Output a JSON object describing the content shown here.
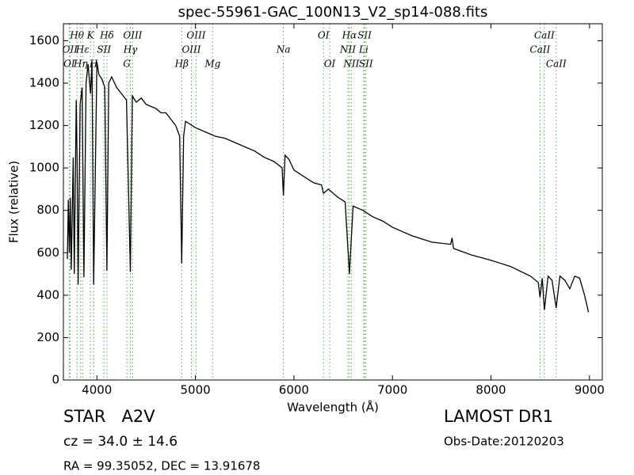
{
  "chart_data": {
    "type": "line",
    "title": "spec-55961-GAC_100N13_V2_sp14-088.fits",
    "xlabel": "Wavelength (Å)",
    "ylabel": "Flux (relative)",
    "xlim": [
      3660,
      9130
    ],
    "ylim": [
      0,
      1680
    ],
    "xticks": [
      4000,
      5000,
      6000,
      7000,
      8000,
      9000
    ],
    "yticks": [
      0,
      200,
      400,
      600,
      800,
      1000,
      1200,
      1400,
      1600
    ],
    "color": "#000000",
    "line_color": "#4caf50",
    "x": [
      3700,
      3710,
      3720,
      3730,
      3740,
      3760,
      3770,
      3790,
      3800,
      3810,
      3830,
      3850,
      3868,
      3890,
      3910,
      3935,
      3950,
      3967,
      4000,
      4020,
      4050,
      4080,
      4102,
      4120,
      4150,
      4200,
      4250,
      4300,
      4340,
      4360,
      4400,
      4450,
      4500,
      4550,
      4600,
      4650,
      4700,
      4750,
      4800,
      4840,
      4861,
      4880,
      4900,
      5000,
      5100,
      5200,
      5300,
      5400,
      5500,
      5600,
      5700,
      5800,
      5880,
      5893,
      5910,
      5950,
      6000,
      6100,
      6200,
      6280,
      6300,
      6350,
      6450,
      6520,
      6563,
      6600,
      6700,
      6800,
      6900,
      7000,
      7200,
      7400,
      7590,
      7605,
      7620,
      7800,
      8000,
      8200,
      8400,
      8480,
      8498,
      8520,
      8542,
      8580,
      8620,
      8662,
      8700,
      8750,
      8800,
      8850,
      8900,
      8950,
      8990
    ],
    "values": [
      570,
      850,
      600,
      860,
      520,
      1050,
      500,
      1320,
      1000,
      450,
      1300,
      1380,
      485,
      1400,
      1490,
      1350,
      1500,
      450,
      1500,
      1440,
      1420,
      1380,
      515,
      1400,
      1430,
      1380,
      1350,
      1320,
      510,
      1340,
      1310,
      1330,
      1300,
      1290,
      1280,
      1260,
      1260,
      1230,
      1200,
      1150,
      550,
      1150,
      1220,
      1190,
      1170,
      1150,
      1140,
      1120,
      1100,
      1080,
      1050,
      1030,
      1000,
      870,
      1060,
      1040,
      990,
      960,
      930,
      920,
      880,
      900,
      860,
      840,
      500,
      820,
      800,
      770,
      750,
      720,
      680,
      650,
      640,
      670,
      620,
      590,
      565,
      535,
      490,
      460,
      390,
      480,
      330,
      490,
      470,
      340,
      490,
      470,
      430,
      490,
      480,
      400,
      320
    ],
    "annotations": [
      [
        {
          "label": "Hθ",
          "wavelength": 3798
        },
        {
          "label": "K",
          "wavelength": 3934
        },
        {
          "label": "Hδ",
          "wavelength": 4102
        },
        {
          "label": "OIII",
          "wavelength": 4363
        },
        {
          "label": "OIII",
          "wavelength": 5007
        },
        {
          "label": "OI",
          "wavelength": 6300
        },
        {
          "label": "Hα",
          "wavelength": 6563
        },
        {
          "label": "SII",
          "wavelength": 6717
        },
        {
          "label": "CaII",
          "wavelength": 8542
        }
      ],
      [
        {
          "label": "OII",
          "wavelength": 3727
        },
        {
          "label": "Hε",
          "wavelength": 3855
        },
        {
          "label": "SII",
          "wavelength": 4072
        },
        {
          "label": "Hγ",
          "wavelength": 4340
        },
        {
          "label": "OIII",
          "wavelength": 4959
        },
        {
          "label": "Na",
          "wavelength": 5893
        },
        {
          "label": "NII",
          "wavelength": 6548
        },
        {
          "label": "Li",
          "wavelength": 6708
        },
        {
          "label": "CaII",
          "wavelength": 8498
        }
      ],
      [
        {
          "label": "OI",
          "wavelength": 3720
        },
        {
          "label": "Hη",
          "wavelength": 3835
        },
        {
          "label": "H",
          "wavelength": 3968
        },
        {
          "label": "G",
          "wavelength": 4304
        },
        {
          "label": "Hβ",
          "wavelength": 4861
        },
        {
          "label": "Mg",
          "wavelength": 5175
        },
        {
          "label": "OI",
          "wavelength": 6363
        },
        {
          "label": "NII",
          "wavelength": 6583
        },
        {
          "label": "SII",
          "wavelength": 6731
        },
        {
          "label": "CaII",
          "wavelength": 8662
        }
      ]
    ],
    "info": {
      "class": "STAR   A2V",
      "cz": "cz = 34.0 ± 14.6",
      "coords": "RA = 99.35052, DEC = 13.91678",
      "release": "LAMOST DR1",
      "date": "Obs-Date:20120203"
    }
  }
}
